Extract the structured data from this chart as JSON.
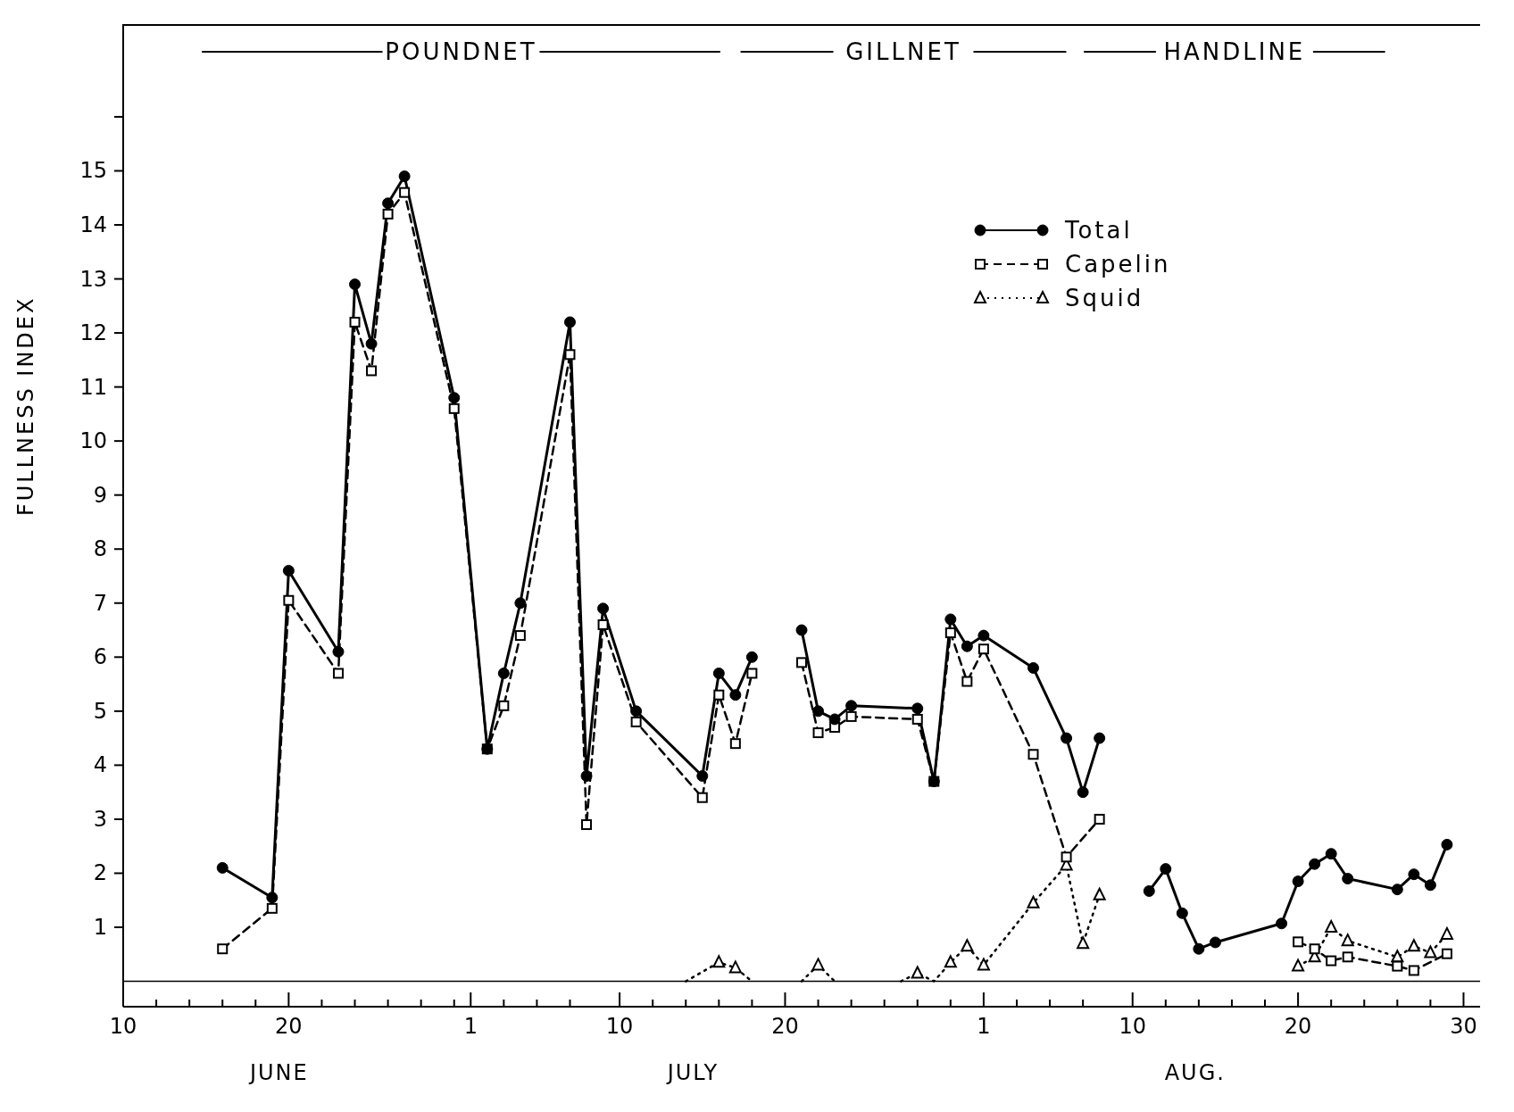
{
  "chart_data": {
    "type": "line",
    "ylabel": "FULLNESS INDEX",
    "xlim": [
      "--06-10",
      "--08-31"
    ],
    "xticks": [
      {
        "value": "--06-10",
        "label": "10"
      },
      {
        "value": "--06-12",
        "label": null
      },
      {
        "value": "--06-14",
        "label": null
      },
      {
        "value": "--06-16",
        "label": null
      },
      {
        "value": "--06-18",
        "label": null
      },
      {
        "value": "--06-20",
        "label": "20"
      },
      {
        "value": "--06-22",
        "label": null
      },
      {
        "value": "--06-24",
        "label": null
      },
      {
        "value": "--06-26",
        "label": null
      },
      {
        "value": "--06-28",
        "label": null
      },
      {
        "value": "--06-30",
        "label": null
      },
      {
        "value": "--07-01",
        "label": "1"
      },
      {
        "value": "--07-03",
        "label": null
      },
      {
        "value": "--07-05",
        "label": null
      },
      {
        "value": "--07-07",
        "label": null
      },
      {
        "value": "--07-10",
        "label": "10"
      },
      {
        "value": "--07-12",
        "label": null
      },
      {
        "value": "--07-14",
        "label": null
      },
      {
        "value": "--07-16",
        "label": null
      },
      {
        "value": "--07-18",
        "label": null
      },
      {
        "value": "--07-20",
        "label": "20"
      },
      {
        "value": "--07-22",
        "label": null
      },
      {
        "value": "--07-24",
        "label": null
      },
      {
        "value": "--07-26",
        "label": null
      },
      {
        "value": "--07-28",
        "label": null
      },
      {
        "value": "--07-30",
        "label": null
      },
      {
        "value": "--08-01",
        "label": "1"
      },
      {
        "value": "--08-03",
        "label": null
      },
      {
        "value": "--08-05",
        "label": null
      },
      {
        "value": "--08-07",
        "label": null
      },
      {
        "value": "--08-10",
        "label": "10"
      },
      {
        "value": "--08-12",
        "label": null
      },
      {
        "value": "--08-14",
        "label": null
      },
      {
        "value": "--08-16",
        "label": null
      },
      {
        "value": "--08-18",
        "label": null
      },
      {
        "value": "--08-20",
        "label": "20"
      },
      {
        "value": "--08-22",
        "label": null
      },
      {
        "value": "--08-24",
        "label": null
      },
      {
        "value": "--08-26",
        "label": null
      },
      {
        "value": "--08-28",
        "label": null
      },
      {
        "value": "--08-30",
        "label": "30"
      }
    ],
    "ylim": [
      -0.47,
      17.7
    ],
    "yticks": [
      1,
      2,
      3,
      4,
      5,
      6,
      7,
      8,
      9,
      10,
      11,
      12,
      13,
      14,
      15,
      {
        "value": 16,
        "label": null
      }
    ],
    "grid": false,
    "legend": "top right",
    "ref_lines": [
      {
        "axis": "y",
        "value": 0,
        "label": null,
        "color": "#000000"
      }
    ],
    "annotations": [
      "POUNDNET",
      "GILLNET",
      "HANDLINE",
      "JUNE",
      "JULY",
      "AUG."
    ],
    "series": [
      {
        "name": "Total",
        "color": "#000000",
        "marker": "circle",
        "line_style": "solid",
        "x": [
          "--06-16",
          "--06-19",
          "--06-20",
          "--06-23",
          "--06-24",
          "--06-25",
          "--06-26",
          "--06-27",
          "--06-30",
          "--07-02",
          "--07-03",
          "--07-04",
          "--07-07",
          "--07-08",
          "--07-09",
          "--07-11",
          "--07-15",
          "--07-16",
          "--07-17",
          "--07-18",
          "--07-19",
          "--07-21",
          "--07-22",
          "--07-23",
          "--07-24",
          "--07-28",
          "--07-29",
          "--07-30",
          "--07-31",
          "--08-01",
          "--08-04",
          "--08-06",
          "--08-07",
          "--08-08",
          "--08-10",
          "--08-11",
          "--08-12",
          "--08-13",
          "--08-14",
          "--08-15",
          "--08-19",
          "--08-20",
          "--08-21",
          "--08-22",
          "--08-23",
          "--08-26",
          "--08-27",
          "--08-28",
          "--08-29"
        ],
        "values": [
          2.1,
          1.55,
          7.6,
          6.1,
          12.9,
          11.8,
          14.4,
          14.9,
          10.8,
          4.3,
          5.7,
          7.0,
          12.2,
          3.8,
          6.9,
          5.0,
          3.8,
          5.7,
          5.3,
          6.0,
          null,
          6.5,
          5.0,
          4.85,
          5.1,
          5.05,
          3.7,
          6.7,
          6.2,
          6.4,
          5.8,
          4.5,
          3.5,
          4.5,
          null,
          1.67,
          2.08,
          1.26,
          0.6,
          0.72,
          1.07,
          1.85,
          2.17,
          2.36,
          1.9,
          1.7,
          1.98,
          1.78,
          2.53
        ]
      },
      {
        "name": "Capelin",
        "color": "#000000",
        "marker": "square",
        "line_style": "dashed",
        "x": [
          "--06-16",
          "--06-19",
          "--06-20",
          "--06-23",
          "--06-24",
          "--06-25",
          "--06-26",
          "--06-27",
          "--06-30",
          "--07-02",
          "--07-03",
          "--07-04",
          "--07-07",
          "--07-08",
          "--07-09",
          "--07-11",
          "--07-15",
          "--07-16",
          "--07-17",
          "--07-18",
          "--07-19",
          "--07-21",
          "--07-22",
          "--07-23",
          "--07-24",
          "--07-28",
          "--07-29",
          "--07-30",
          "--07-31",
          "--08-01",
          "--08-04",
          "--08-06",
          "--08-08",
          "--08-14",
          "--08-20",
          "--08-21",
          "--08-22",
          "--08-23",
          "--08-26",
          "--08-27",
          "--08-29"
        ],
        "values": [
          0.6,
          1.35,
          7.05,
          5.7,
          12.2,
          11.3,
          14.2,
          14.6,
          10.6,
          4.3,
          5.1,
          6.4,
          11.6,
          2.9,
          6.6,
          4.8,
          3.4,
          5.3,
          4.4,
          5.7,
          null,
          5.9,
          4.6,
          4.7,
          4.9,
          4.85,
          3.7,
          6.45,
          5.55,
          6.15,
          4.2,
          2.3,
          3.0,
          null,
          0.73,
          0.6,
          0.38,
          0.45,
          0.28,
          0.2,
          0.51
        ]
      },
      {
        "name": "Squid",
        "color": "#000000",
        "marker": "triangle",
        "line_style": "dotted",
        "x": [
          "--07-14",
          "--07-16",
          "--07-17",
          "--07-18",
          "--07-19",
          "--07-21",
          "--07-22",
          "--07-23",
          "--07-25",
          "--07-27",
          "--07-28",
          "--07-29",
          "--07-30",
          "--07-31",
          "--08-01",
          "--08-04",
          "--08-06",
          "--08-07",
          "--08-08",
          "--08-14",
          "--08-20",
          "--08-21",
          "--08-22",
          "--08-23",
          "--08-26",
          "--08-27",
          "--08-28",
          "--08-29"
        ],
        "values": [
          0,
          0.35,
          0.25,
          0,
          null,
          0,
          0.3,
          0,
          null,
          0,
          0.15,
          0,
          0.35,
          0.65,
          0.3,
          1.45,
          2.15,
          0.7,
          1.6,
          null,
          0.28,
          0.45,
          1.0,
          0.75,
          0.45,
          0.65,
          0.53,
          0.87
        ]
      }
    ]
  }
}
